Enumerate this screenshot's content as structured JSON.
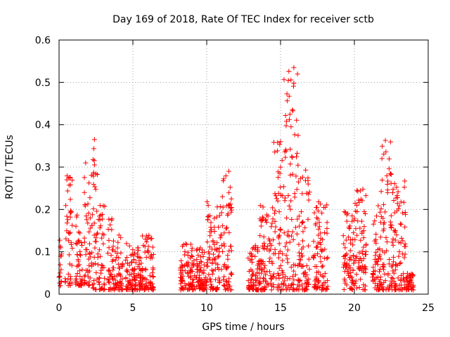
{
  "chart_data": {
    "type": "scatter",
    "title": "Day 169 of 2018, Rate Of TEC Index for receiver sctb",
    "xlabel": "GPS time / hours",
    "ylabel": "ROTI / TECUs",
    "xlim": [
      0,
      25
    ],
    "ylim": [
      0,
      0.6
    ],
    "xticks": [
      0,
      5,
      10,
      15,
      20,
      25
    ],
    "xtick_labels": [
      "0",
      "5",
      "10",
      "15",
      "20",
      "25"
    ],
    "yticks": [
      0,
      0.1,
      0.2,
      0.3,
      0.4,
      0.5,
      0.6
    ],
    "ytick_labels": [
      "0",
      "0.1",
      "0.2",
      "0.3",
      "0.4",
      "0.5",
      "0.6"
    ],
    "grid": true,
    "marker": "+",
    "color": "#ff0000",
    "series": [
      {
        "name": "ROTI",
        "clusters": [
          {
            "x": [
              0.0,
              0.2
            ],
            "y": [
              0.02,
              0.19
            ]
          },
          {
            "x": [
              0.4,
              0.9
            ],
            "y": [
              0.02,
              0.28
            ]
          },
          {
            "x": [
              1.1,
              1.6
            ],
            "y": [
              0.02,
              0.19
            ]
          },
          {
            "x": [
              1.7,
              2.2
            ],
            "y": [
              0.02,
              0.31
            ]
          },
          {
            "x": [
              2.2,
              2.7
            ],
            "y": [
              0.01,
              0.37
            ]
          },
          {
            "x": [
              2.7,
              3.1
            ],
            "y": [
              0.01,
              0.21
            ]
          },
          {
            "x": [
              3.3,
              3.8
            ],
            "y": [
              0.01,
              0.19
            ]
          },
          {
            "x": [
              3.8,
              4.3
            ],
            "y": [
              0.01,
              0.14
            ]
          },
          {
            "x": [
              4.5,
              5.5
            ],
            "y": [
              0.01,
              0.12
            ]
          },
          {
            "x": [
              5.5,
              6.4
            ],
            "y": [
              0.01,
              0.14
            ]
          },
          {
            "x": [
              8.2,
              9.0
            ],
            "y": [
              0.01,
              0.12
            ]
          },
          {
            "x": [
              9.0,
              10.0
            ],
            "y": [
              0.01,
              0.11
            ]
          },
          {
            "x": [
              10.0,
              11.0
            ],
            "y": [
              0.01,
              0.22
            ]
          },
          {
            "x": [
              11.0,
              11.7
            ],
            "y": [
              0.01,
              0.29
            ]
          },
          {
            "x": [
              12.8,
              13.6
            ],
            "y": [
              0.01,
              0.12
            ]
          },
          {
            "x": [
              13.6,
              14.5
            ],
            "y": [
              0.01,
              0.21
            ]
          },
          {
            "x": [
              14.5,
              15.2
            ],
            "y": [
              0.01,
              0.36
            ]
          },
          {
            "x": [
              15.2,
              16.2
            ],
            "y": [
              0.01,
              0.53
            ]
          },
          {
            "x": [
              16.2,
              17.0
            ],
            "y": [
              0.01,
              0.29
            ]
          },
          {
            "x": [
              17.2,
              18.2
            ],
            "y": [
              0.01,
              0.22
            ]
          },
          {
            "x": [
              19.2,
              20.0
            ],
            "y": [
              0.01,
              0.21
            ]
          },
          {
            "x": [
              20.0,
              20.8
            ],
            "y": [
              0.01,
              0.25
            ]
          },
          {
            "x": [
              21.2,
              21.8
            ],
            "y": [
              0.01,
              0.22
            ]
          },
          {
            "x": [
              21.8,
              22.5
            ],
            "y": [
              0.01,
              0.36
            ]
          },
          {
            "x": [
              22.5,
              23.5
            ],
            "y": [
              0.01,
              0.27
            ]
          },
          {
            "x": [
              23.5,
              24.0
            ],
            "y": [
              0.01,
              0.05
            ]
          }
        ],
        "outliers": [
          {
            "x": 15.9,
            "y": 0.535
          },
          {
            "x": 15.9,
            "y": 0.498
          },
          {
            "x": 15.8,
            "y": 0.435
          },
          {
            "x": 15.0,
            "y": 0.36
          },
          {
            "x": 22.1,
            "y": 0.363
          },
          {
            "x": 2.4,
            "y": 0.365
          },
          {
            "x": 1.8,
            "y": 0.31
          },
          {
            "x": 11.5,
            "y": 0.29
          },
          {
            "x": 16.7,
            "y": 0.293
          }
        ]
      }
    ]
  }
}
